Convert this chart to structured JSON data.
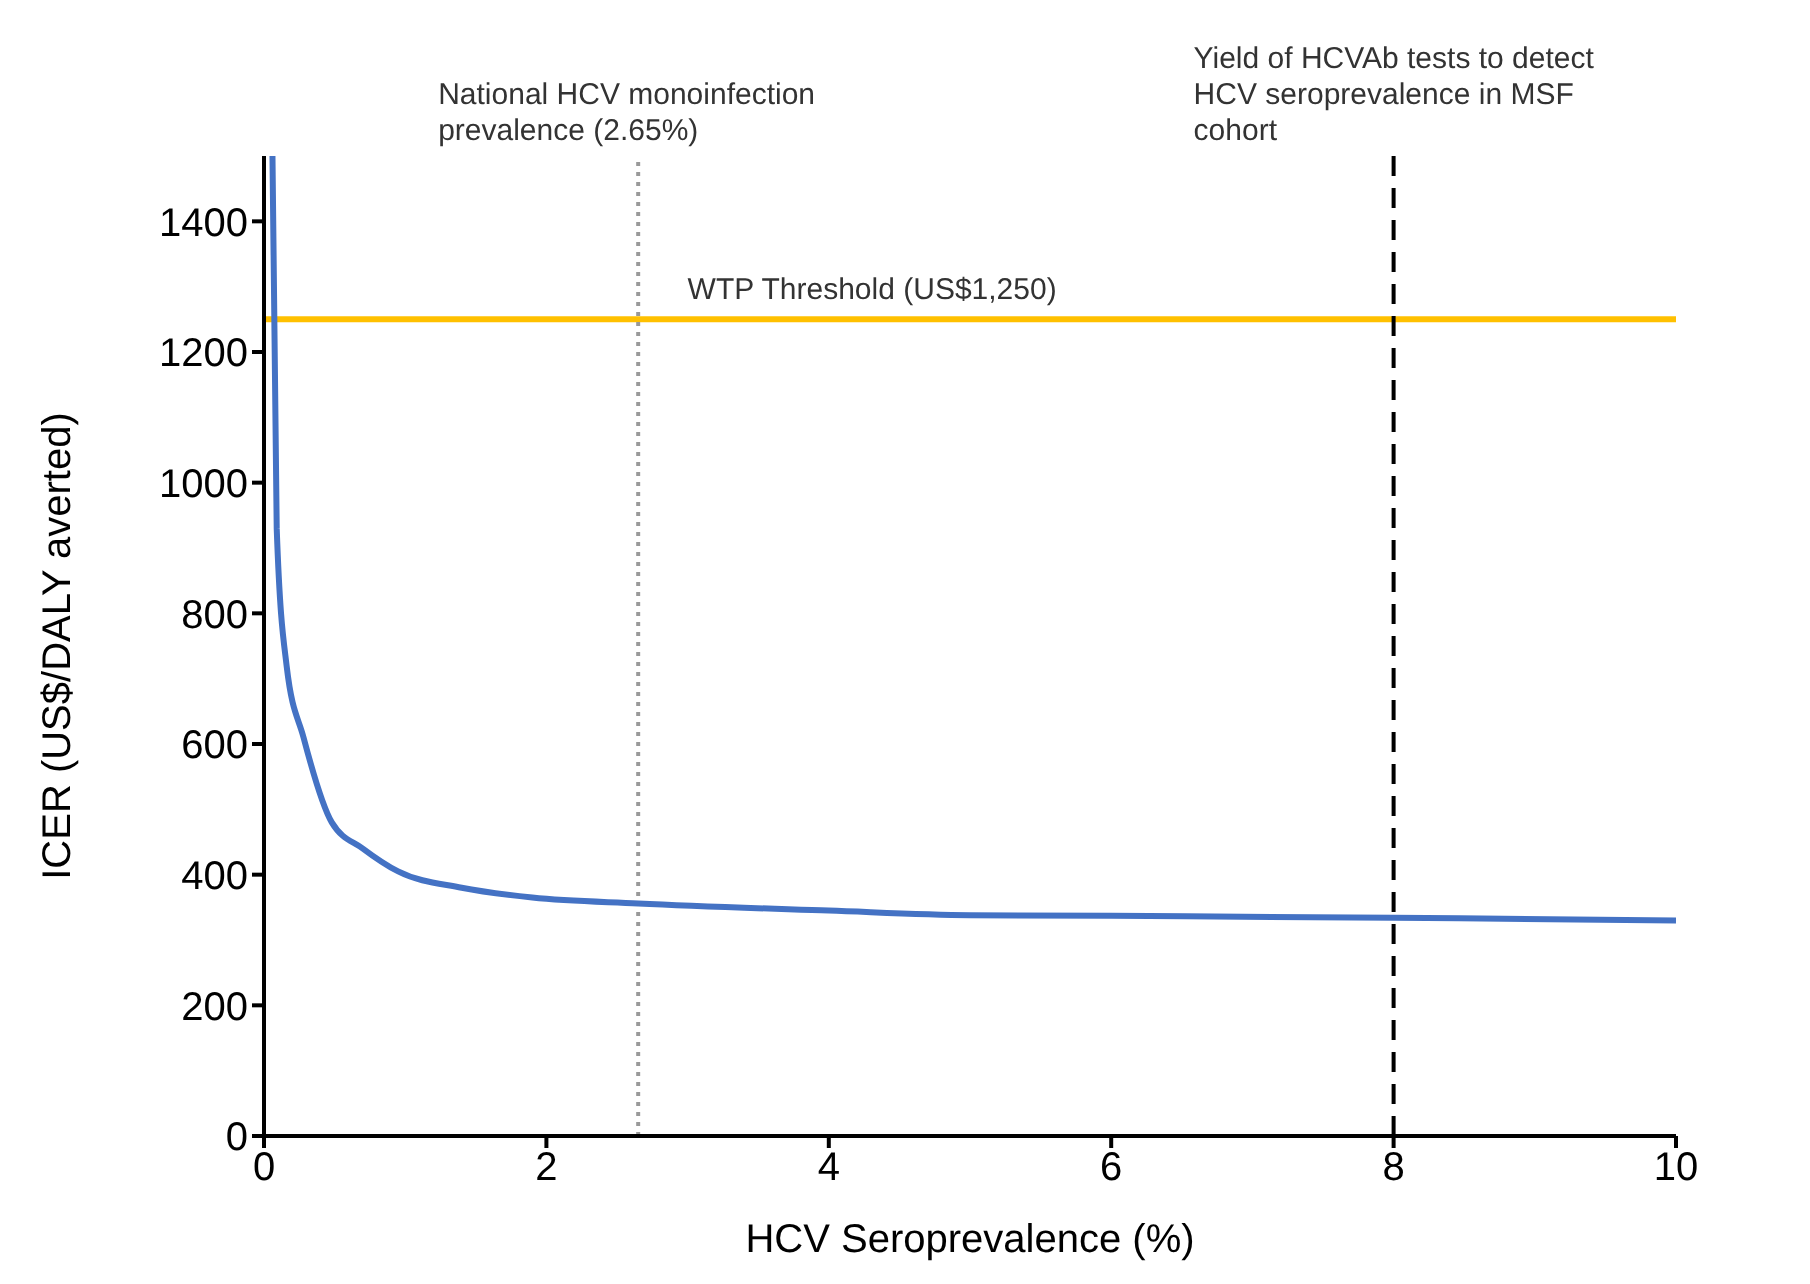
{
  "chart_data": {
    "type": "line",
    "xlabel": "HCV Seroprevalence (%)",
    "ylabel": "ICER (US$/DALY averted)",
    "x": [
      0.06,
      0.09,
      0.16,
      0.28,
      0.48,
      0.7,
      0.95,
      1.4,
      1.9,
      2.65,
      4,
      5,
      6,
      8,
      10
    ],
    "series": [
      {
        "color": "#4472c4",
        "values": [
          1500,
          930,
          720,
          610,
          480,
          440,
          405,
          380,
          365,
          356,
          345,
          338,
          337,
          334,
          330
        ]
      }
    ],
    "xlim": [
      0,
      10
    ],
    "xticks": [
      0,
      2,
      4,
      6,
      8,
      10
    ],
    "ylim": [
      0,
      1500
    ],
    "yticks": [
      0,
      200,
      400,
      600,
      800,
      1000,
      1200,
      1400
    ],
    "grid": false,
    "legend": false,
    "marker": "none",
    "line_style": "solid",
    "ref_lines": [
      {
        "axis": "y",
        "value": 1250,
        "label": "WTP Threshold (US$1,250)",
        "color": "#ffc000",
        "line_style": "solid"
      },
      {
        "axis": "x",
        "value": 2.65,
        "label": "National HCV monoinfection prevalence (2.65%)",
        "color": "#999999",
        "line_style": "dotted"
      },
      {
        "axis": "x",
        "value": 8,
        "label": "Yield of HCVAb tests to detect HCV seroprevalence in MSF cohort",
        "color": "#000000",
        "line_style": "dashed"
      }
    ]
  }
}
